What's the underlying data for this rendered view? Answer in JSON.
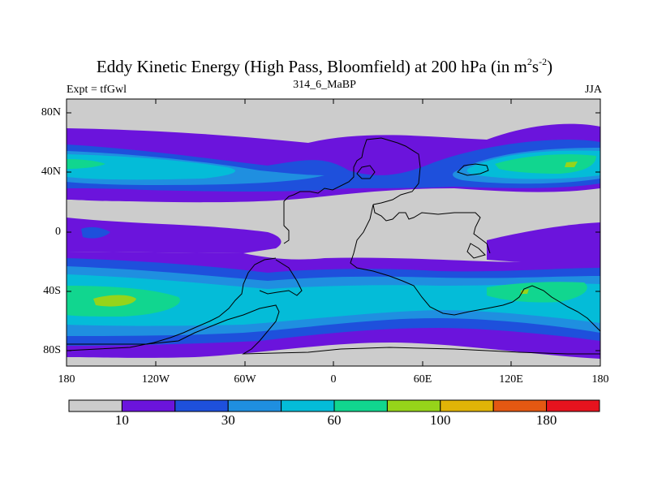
{
  "title": {
    "main": "Eddy Kinetic Energy (High Pass, Bloomfield) at 200 hPa (in m",
    "sup1": "2",
    "s": "s",
    "sup2": "-2",
    "close": ")"
  },
  "subtitle": "314_6_MaBP",
  "left_label": "Expt = tfGwl",
  "right_label": "JJA",
  "axes": {
    "y_ticks": [
      "80N",
      "40N",
      "0",
      "40S",
      "80S"
    ],
    "x_ticks": [
      "180",
      "120W",
      "60W",
      "0",
      "60E",
      "120E",
      "180"
    ]
  },
  "colorbar": {
    "colors": [
      "#cccccc",
      "#6b14dc",
      "#1e50dc",
      "#1f8fe0",
      "#04bcd8",
      "#11d68f",
      "#96d41a",
      "#e1b407",
      "#e45812",
      "#e6131e"
    ],
    "labels": [
      {
        "text": "10",
        "after_box": 1
      },
      {
        "text": "30",
        "after_box": 3
      },
      {
        "text": "60",
        "after_box": 5
      },
      {
        "text": "100",
        "after_box": 7
      },
      {
        "text": "180",
        "after_box": 9
      }
    ]
  }
}
